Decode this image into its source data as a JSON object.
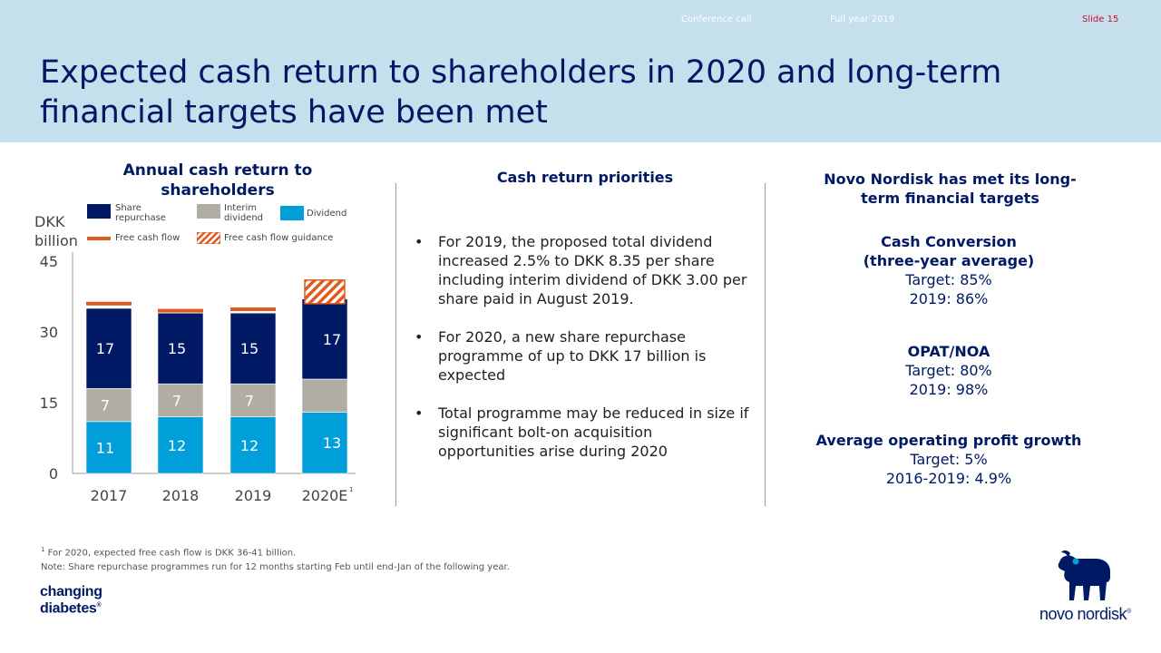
{
  "header": {
    "conference_call": "Conference call",
    "period": "Full year 2019",
    "slide": "Slide 15",
    "title_line1": "Expected cash return to shareholders in 2020 and long-term",
    "title_line2": "financial targets have been met"
  },
  "chart_section": {
    "title_line1": "Annual cash return to",
    "title_line2": "shareholders",
    "y_unit_line1": "DKK",
    "y_unit_line2": "billion",
    "legend": {
      "share_repurchase_line1": "Share",
      "share_repurchase_line2": "repurchase",
      "interim_dividend_line1": "Interim",
      "interim_dividend_line2": "dividend",
      "dividend": "Dividend",
      "free_cash_flow": "Free cash flow",
      "free_cash_flow_guidance": "Free cash flow guidance"
    }
  },
  "chart_data": {
    "type": "bar",
    "stacked": true,
    "categories": [
      "2017",
      "2018",
      "2019",
      "2020E"
    ],
    "category_superscripts": [
      "",
      "",
      "",
      "1"
    ],
    "ylim": [
      0,
      45
    ],
    "yticks": [
      0,
      15,
      30,
      45
    ],
    "series": [
      {
        "name": "Dividend",
        "values": [
          11,
          12,
          12,
          13
        ],
        "labels": [
          "11",
          "12",
          "12",
          "13"
        ],
        "color": "#009fda"
      },
      {
        "name": "Interim dividend",
        "values": [
          7,
          7,
          7,
          7
        ],
        "labels": [
          "7",
          "7",
          "7",
          ""
        ],
        "color": "#b1aca4"
      },
      {
        "name": "Share repurchase",
        "values": [
          17,
          15,
          15,
          17
        ],
        "labels": [
          "17",
          "15",
          "15",
          "17"
        ],
        "color": "#001965"
      }
    ],
    "free_cash_flow": [
      36,
      34.5,
      34.8,
      null
    ],
    "free_cash_flow_guidance": [
      null,
      null,
      null,
      [
        36,
        41
      ]
    ],
    "colors": {
      "free_cash_flow": "#e05a1e",
      "guidance_stripe": "#e05a1e",
      "axis": "#999999"
    }
  },
  "priorities": {
    "title": "Cash return priorities",
    "bullet_char": "•",
    "bullets": [
      "For 2019, the proposed total dividend increased 2.5% to DKK 8.35 per share including interim dividend of DKK 3.00 per share paid in August 2019.",
      "For 2020, a new share repurchase programme of up to DKK 17 billion is expected",
      "Total programme may be reduced in size if significant bolt-on acquisition opportunities arise during 2020"
    ]
  },
  "targets": {
    "title_line1": "Novo Nordisk has met its long-",
    "title_line2": "term financial targets",
    "cash_conversion": {
      "title_line1": "Cash Conversion",
      "title_line2": "(three-year average)",
      "target": "Target: 85%",
      "actual": "2019: 86%"
    },
    "opat_noa": {
      "title": "OPAT/NOA",
      "target": "Target: 80%",
      "actual": "2019: 98%"
    },
    "op_growth": {
      "title": "Average operating profit growth",
      "target": "Target: 5%",
      "actual": "2016-2019: 4.9%"
    }
  },
  "footnotes": {
    "note1_mark": "1",
    "note1": "For 2020, expected free cash flow is DKK 36-41 billion.",
    "note2": "Note: Share repurchase programmes run for 12 months starting Feb until end-Jan of the following year."
  },
  "logos": {
    "changing_line1": "changing",
    "changing_line2": "diabetes",
    "changing_reg": "®",
    "brand": "novo nordisk",
    "brand_reg": "®"
  }
}
